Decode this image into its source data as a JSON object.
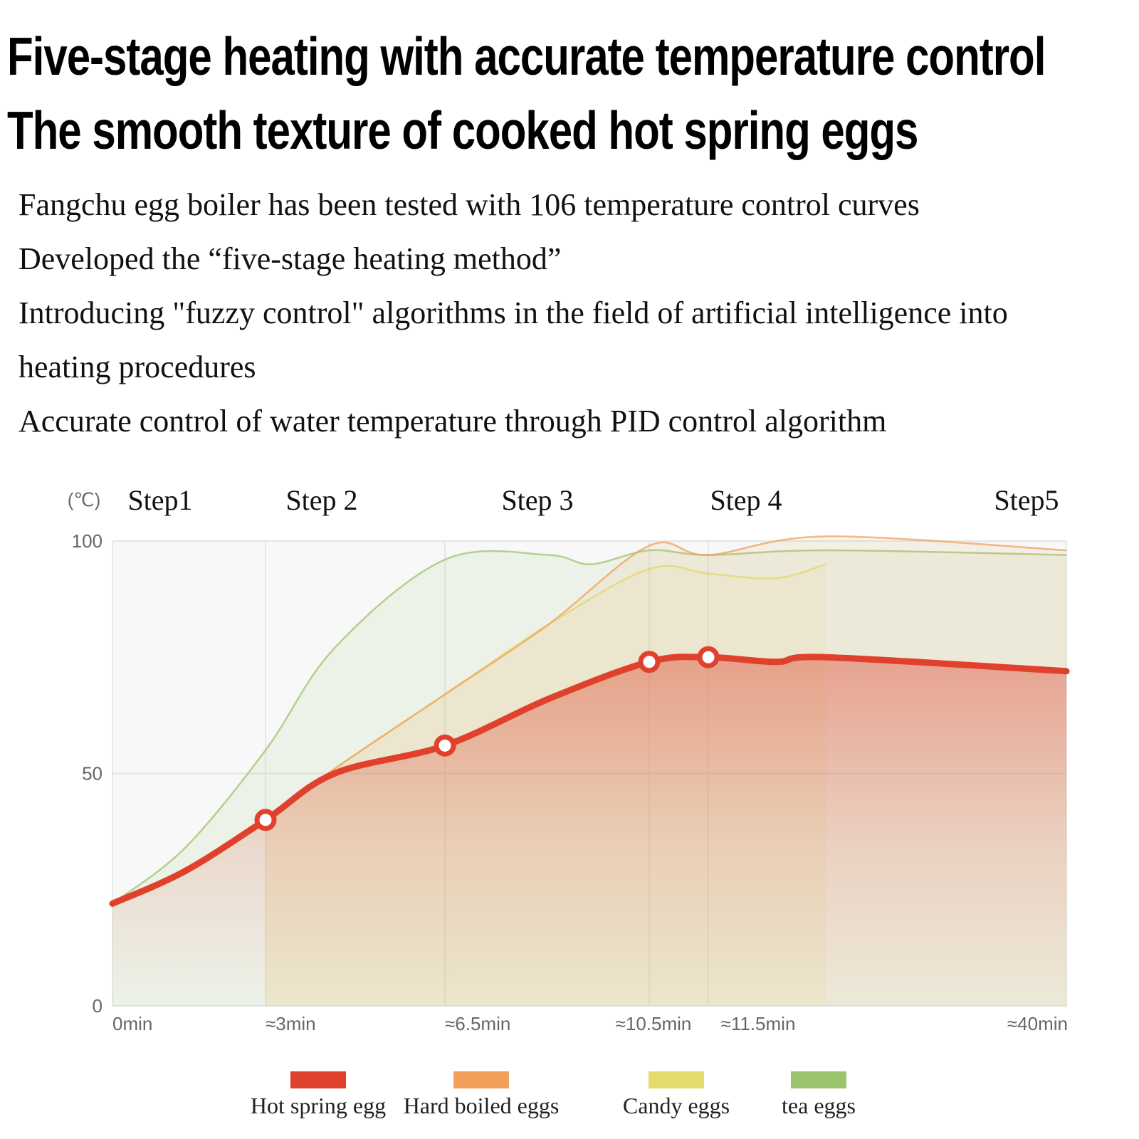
{
  "header": {
    "title": "Five-stage heating with accurate temperature control",
    "subtitle": "The smooth texture of cooked hot spring eggs"
  },
  "description": [
    "Fangchu egg boiler has been tested with 106 temperature control curves",
    "Developed the “five-stage heating method”",
    "Introducing \"fuzzy control\" algorithms in the field of artificial intelligence into",
    "heating procedures",
    "Accurate control of water temperature through PID control algorithm"
  ],
  "chart_data": {
    "type": "area",
    "y_unit": "(℃)",
    "ylim": [
      0,
      100
    ],
    "y_ticks": [
      0,
      50,
      100
    ],
    "stages": [
      "Step1",
      "Step 2",
      "Step 3",
      "Step 4",
      "Step5"
    ],
    "x_tick_labels": [
      "0min",
      "≈3min",
      "≈6.5min",
      "≈10.5min",
      "≈11.5min",
      "≈40min"
    ],
    "grid": true,
    "legend_position": "bottom",
    "series": [
      {
        "name": "Hot spring egg",
        "color": "#e0412c",
        "points": [
          [
            "0min",
            22
          ],
          [
            "1.5min",
            29
          ],
          [
            "≈3min",
            40
          ],
          [
            "4.5min",
            50
          ],
          [
            "≈6.5min",
            56
          ],
          [
            "8.5min",
            66
          ],
          [
            "≈10.5min",
            74
          ],
          [
            "≈11.5min",
            75
          ],
          [
            "13min",
            74
          ],
          [
            "15min",
            75
          ],
          [
            "≈40min",
            72
          ]
        ],
        "markers": [
          "≈3min",
          "≈6.5min",
          "≈10.5min",
          "≈11.5min"
        ]
      },
      {
        "name": "Hard boiled eggs",
        "color": "#f0a05a",
        "points": [
          [
            "≈3min",
            40
          ],
          [
            "4.5min",
            51
          ],
          [
            "≈6.5min",
            67
          ],
          [
            "8.5min",
            82
          ],
          [
            "≈10.5min",
            99
          ],
          [
            "≈11.5min",
            97
          ],
          [
            "15min",
            101
          ],
          [
            "≈40min",
            98
          ]
        ]
      },
      {
        "name": "Candy eggs",
        "color": "#e3dc6c",
        "points": [
          [
            "≈3min",
            40
          ],
          [
            "4.5min",
            51
          ],
          [
            "≈6.5min",
            67
          ],
          [
            "8.5min",
            82
          ],
          [
            "≈10.5min",
            94
          ],
          [
            "≈11.5min",
            93
          ],
          [
            "13min",
            92
          ],
          [
            "15min",
            95
          ]
        ]
      },
      {
        "name": "tea eggs",
        "color": "#9cc46c",
        "points": [
          [
            "0min",
            22
          ],
          [
            "1.5min",
            34
          ],
          [
            "≈3min",
            55
          ],
          [
            "4.5min",
            77
          ],
          [
            "≈6.5min",
            96
          ],
          [
            "8.5min",
            97
          ],
          [
            "9.5min",
            95
          ],
          [
            "≈10.5min",
            98
          ],
          [
            "≈11.5min",
            97
          ],
          [
            "15min",
            98
          ],
          [
            "≈40min",
            97
          ]
        ]
      }
    ]
  }
}
